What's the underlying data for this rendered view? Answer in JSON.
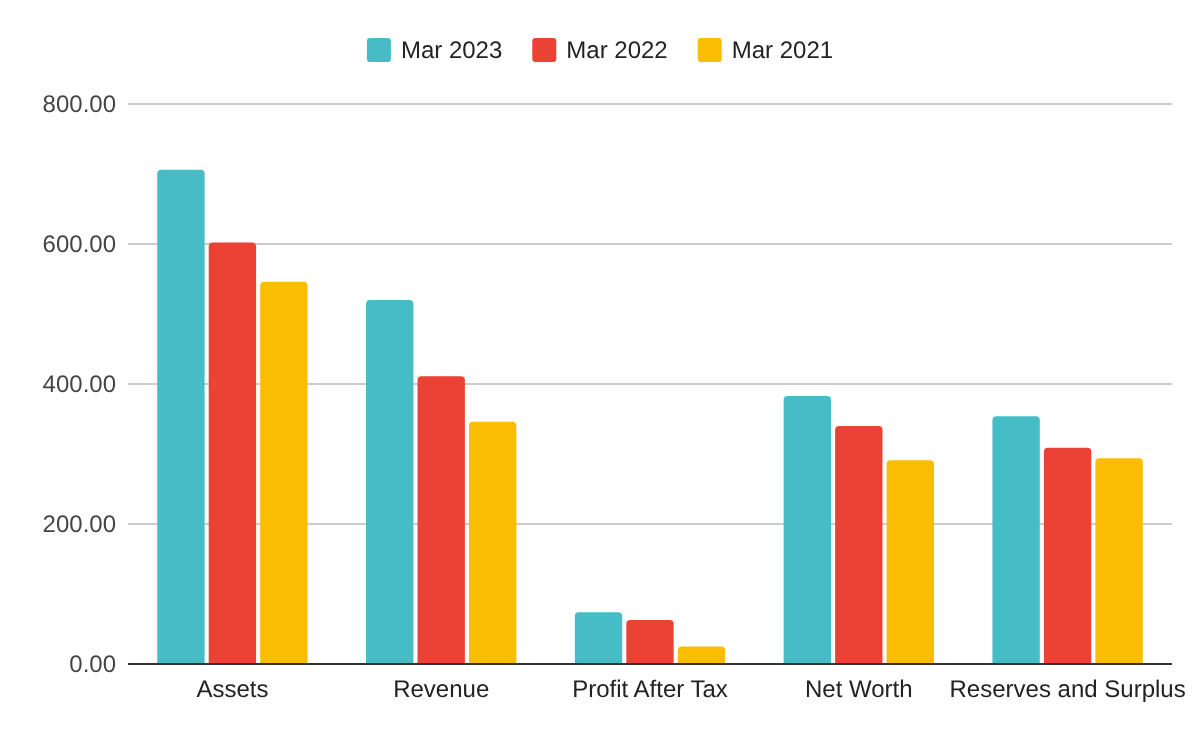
{
  "chart_data": {
    "type": "bar",
    "categories": [
      "Assets",
      "Revenue",
      "Profit After Tax",
      "Net Worth",
      "Reserves and Surplus"
    ],
    "series": [
      {
        "name": "Mar 2023",
        "color": "#46bdc6",
        "values": [
          706,
          520,
          74,
          383,
          354
        ]
      },
      {
        "name": "Mar 2022",
        "color": "#ea4335",
        "values": [
          602,
          411,
          63,
          340,
          309
        ]
      },
      {
        "name": "Mar 2021",
        "color": "#fbbc04",
        "values": [
          546,
          346,
          25,
          291,
          294
        ]
      }
    ],
    "ylim": [
      0,
      800
    ],
    "yticks": [
      {
        "value": 0,
        "label": "0.00"
      },
      {
        "value": 200,
        "label": "200.00"
      },
      {
        "value": 400,
        "label": "400.00"
      },
      {
        "value": 600,
        "label": "600.00"
      },
      {
        "value": 800,
        "label": "800.00"
      }
    ],
    "grid": true,
    "legend": "top"
  }
}
